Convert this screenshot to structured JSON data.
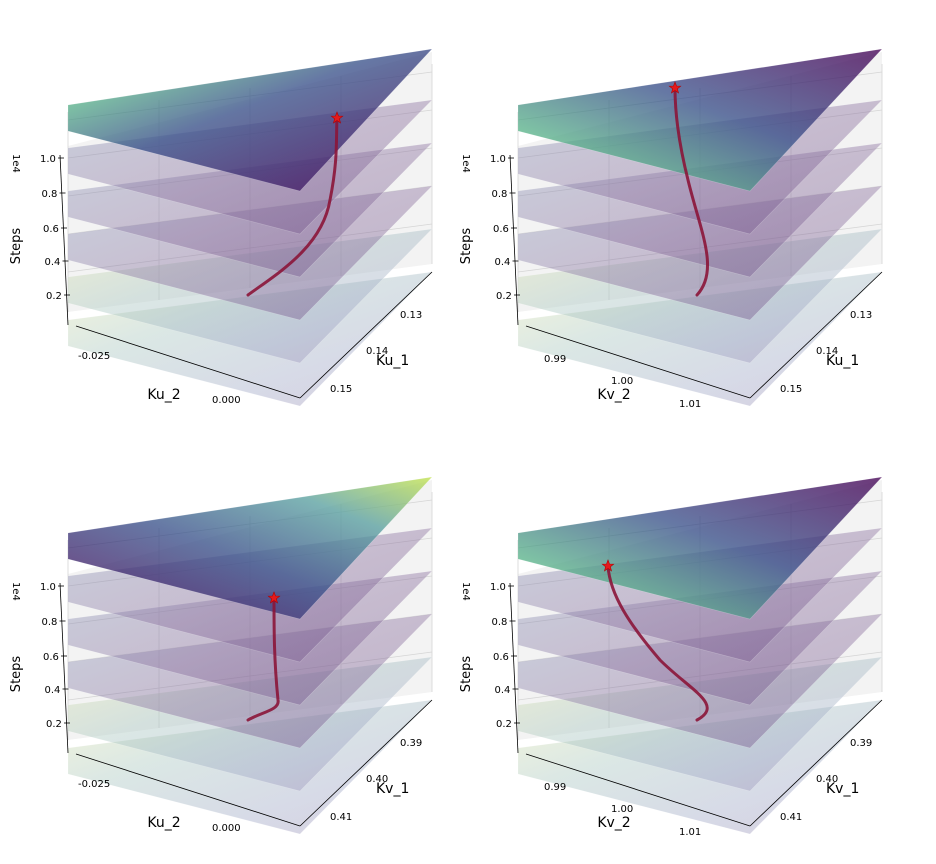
{
  "chart_data": [
    {
      "type": "surface3d-stack",
      "xlabel": "Ku_2",
      "ylabel": "Ku_1",
      "zlabel": "Steps",
      "zscale_label": "1e4",
      "x_ticks": [
        "-0.025",
        "0.000"
      ],
      "y_ticks": [
        "0.13",
        "0.14",
        "0.15"
      ],
      "z_ticks": [
        "0.2",
        "0.4",
        "0.6",
        "0.8",
        "1.0"
      ],
      "trajectory_z": [
        0.2,
        0.4,
        0.6,
        0.8,
        1.0
      ],
      "end_marker": "star"
    },
    {
      "type": "surface3d-stack",
      "xlabel": "Kv_2",
      "ylabel": "Ku_1",
      "zlabel": "Steps",
      "zscale_label": "1e4",
      "x_ticks": [
        "0.99",
        "1.00",
        "1.01"
      ],
      "y_ticks": [
        "0.13",
        "0.14",
        "0.15"
      ],
      "z_ticks": [
        "0.2",
        "0.4",
        "0.6",
        "0.8",
        "1.0"
      ],
      "trajectory_z": [
        0.2,
        0.4,
        0.6,
        0.8,
        1.0
      ],
      "end_marker": "star"
    },
    {
      "type": "surface3d-stack",
      "xlabel": "Ku_2",
      "ylabel": "Kv_1",
      "zlabel": "Steps",
      "zscale_label": "1e4",
      "x_ticks": [
        "-0.025",
        "0.000"
      ],
      "y_ticks": [
        "0.39",
        "0.40",
        "0.41"
      ],
      "z_ticks": [
        "0.2",
        "0.4",
        "0.6",
        "0.8",
        "1.0"
      ],
      "trajectory_z": [
        0.2,
        0.4,
        0.6,
        0.8,
        1.0
      ],
      "end_marker": "star"
    },
    {
      "type": "surface3d-stack",
      "xlabel": "Kv_2",
      "ylabel": "Kv_1",
      "zlabel": "Steps",
      "zscale_label": "1e4",
      "x_ticks": [
        "0.99",
        "1.00",
        "1.01"
      ],
      "y_ticks": [
        "0.39",
        "0.40",
        "0.41"
      ],
      "z_ticks": [
        "0.2",
        "0.4",
        "0.6",
        "0.8",
        "1.0"
      ],
      "trajectory_z": [
        0.2,
        0.4,
        0.6,
        0.8,
        1.0
      ],
      "end_marker": "star"
    }
  ],
  "colors": {
    "surface_dark": "#440154",
    "surface_mid": "#3b528b",
    "surface_teal": "#21918c",
    "surface_light": "#fde725",
    "trajectory": "#8b1538",
    "marker": "#e41a1c",
    "pane": "#f3f3f3"
  }
}
